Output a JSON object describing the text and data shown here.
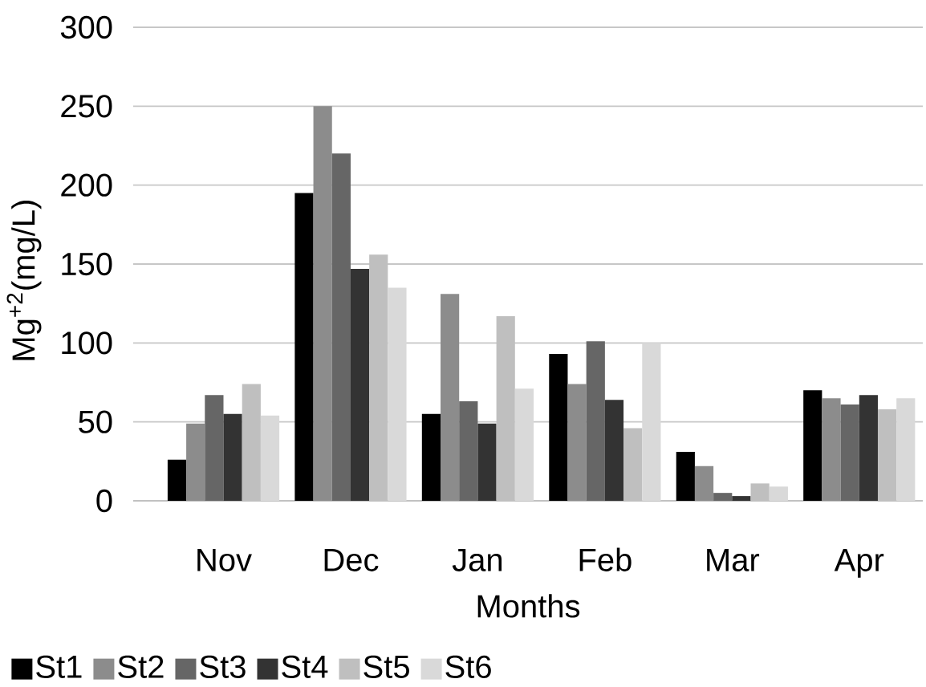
{
  "chart_data": {
    "type": "bar",
    "xlabel": "Months",
    "ylabel": "Mg$^{+2}$(mg/L)",
    "categories": [
      "Nov",
      "Dec",
      "Jan",
      "Feb",
      "Mar",
      "Apr"
    ],
    "ylim": [
      0,
      300
    ],
    "yticks": [
      0,
      50,
      100,
      150,
      200,
      250,
      300
    ],
    "grid": "y",
    "legend": "bottom",
    "series": [
      {
        "name": "St1",
        "color": "#000000",
        "values": [
          26,
          195,
          55,
          93,
          31,
          70
        ]
      },
      {
        "name": "St2",
        "color": "#8c8c8c",
        "values": [
          49,
          250,
          131,
          74,
          22,
          65
        ]
      },
      {
        "name": "St3",
        "color": "#666666",
        "values": [
          67,
          220,
          63,
          101,
          5,
          61
        ]
      },
      {
        "name": "St4",
        "color": "#333333",
        "values": [
          55,
          147,
          49,
          64,
          3,
          67
        ]
      },
      {
        "name": "St5",
        "color": "#bfbfbf",
        "values": [
          74,
          156,
          117,
          46,
          11,
          58
        ]
      },
      {
        "name": "St6",
        "color": "#d9d9d9",
        "values": [
          54,
          135,
          71,
          100,
          9,
          65
        ]
      }
    ]
  }
}
